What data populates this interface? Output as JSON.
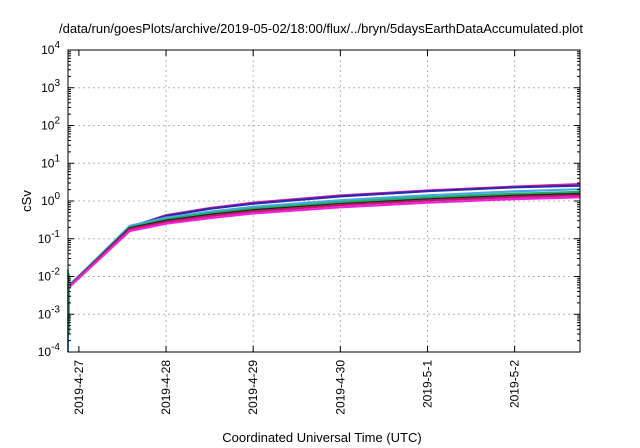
{
  "chart_data": {
    "type": "line",
    "title": "/data/run/goesPlots/archive/2019-05-02/18:00/flux/../bryn/5daysEarthDataAccumulated.plot",
    "xlabel": "Coordinated Universal Time (UTC)",
    "ylabel": "cSv",
    "yscale": "log",
    "ylim": [
      0.0001,
      10000
    ],
    "xlim": [
      "2019-04-26 21:00",
      "2019-05-02 18:00"
    ],
    "grid": true,
    "legend": "none",
    "x_ticks": [
      "2019-4-27",
      "2019-4-28",
      "2019-4-29",
      "2019-4-30",
      "2019-5-1",
      "2019-5-2"
    ],
    "y_ticks": [
      {
        "base": "10",
        "exp": "-4",
        "value": 0.0001
      },
      {
        "base": "10",
        "exp": "-3",
        "value": 0.001
      },
      {
        "base": "10",
        "exp": "-2",
        "value": 0.01
      },
      {
        "base": "10",
        "exp": "-1",
        "value": 0.1
      },
      {
        "base": "10",
        "exp": "0",
        "value": 1
      },
      {
        "base": "10",
        "exp": "1",
        "value": 10
      },
      {
        "base": "10",
        "exp": "2",
        "value": 100
      },
      {
        "base": "10",
        "exp": "3",
        "value": 1000
      },
      {
        "base": "10",
        "exp": "4",
        "value": 10000
      }
    ],
    "series": [
      {
        "color": "#e0189a",
        "x": [
          "2019-04-26 21:00",
          "2019-04-26 21:30",
          "2019-04-27 14:00",
          "2019-04-28 00:00",
          "2019-04-28 12:00",
          "2019-04-29 00:00",
          "2019-04-30 00:00",
          "2019-05-01 00:00",
          "2019-05-02 00:00",
          "2019-05-02 18:00"
        ],
        "values": [
          0.005,
          0.006,
          0.2,
          0.42,
          0.65,
          0.9,
          1.4,
          1.9,
          2.4,
          2.8
        ]
      },
      {
        "color": "#2a2ab0",
        "x": [
          "2019-04-26 21:00",
          "2019-04-26 21:30",
          "2019-04-27 14:00",
          "2019-04-28 00:00",
          "2019-04-28 12:00",
          "2019-04-29 00:00",
          "2019-04-30 00:00",
          "2019-05-01 00:00",
          "2019-05-02 00:00",
          "2019-05-02 18:00"
        ],
        "values": [
          0.005,
          0.006,
          0.21,
          0.4,
          0.62,
          0.85,
          1.32,
          1.82,
          2.3,
          2.55
        ]
      },
      {
        "color": "#4aa8e8",
        "x": [
          "2019-04-26 21:00",
          "2019-04-26 21:30",
          "2019-04-27 14:00",
          "2019-04-28 00:00",
          "2019-04-28 12:00",
          "2019-04-29 00:00",
          "2019-04-30 00:00",
          "2019-05-01 00:00",
          "2019-05-02 00:00",
          "2019-05-02 18:00"
        ],
        "values": [
          0.005,
          0.0058,
          0.22,
          0.36,
          0.52,
          0.7,
          1.05,
          1.42,
          1.8,
          2.05
        ]
      },
      {
        "color": "#20b060",
        "x": [
          "2019-04-26 21:00",
          "2019-04-26 21:30",
          "2019-04-27 14:00",
          "2019-04-28 00:00",
          "2019-04-28 12:00",
          "2019-04-29 00:00",
          "2019-04-30 00:00",
          "2019-05-01 00:00",
          "2019-05-02 00:00",
          "2019-05-02 18:00"
        ],
        "values": [
          0.005,
          0.0057,
          0.2,
          0.33,
          0.47,
          0.63,
          0.93,
          1.25,
          1.55,
          1.75
        ]
      },
      {
        "color": "#222222",
        "x": [
          "2019-04-26 21:00",
          "2019-04-26 21:30",
          "2019-04-27 14:00",
          "2019-04-28 00:00",
          "2019-04-28 12:00",
          "2019-04-29 00:00",
          "2019-04-30 00:00",
          "2019-05-01 00:00",
          "2019-05-02 00:00",
          "2019-05-02 18:00"
        ],
        "values": [
          0.005,
          0.0056,
          0.19,
          0.3,
          0.43,
          0.57,
          0.83,
          1.1,
          1.38,
          1.55
        ]
      },
      {
        "color": "#c0186a",
        "x": [
          "2019-04-26 21:00",
          "2019-04-26 21:30",
          "2019-04-27 14:00",
          "2019-04-28 00:00",
          "2019-04-28 12:00",
          "2019-04-29 00:00",
          "2019-04-30 00:00",
          "2019-05-01 00:00",
          "2019-05-02 00:00",
          "2019-05-02 18:00"
        ],
        "values": [
          0.005,
          0.0055,
          0.18,
          0.28,
          0.4,
          0.53,
          0.78,
          1.03,
          1.28,
          1.42
        ]
      },
      {
        "color": "#ee22dd",
        "x": [
          "2019-04-26 21:00",
          "2019-04-26 21:30",
          "2019-04-27 14:00",
          "2019-04-28 00:00",
          "2019-04-28 12:00",
          "2019-04-29 00:00",
          "2019-04-30 00:00",
          "2019-05-01 00:00",
          "2019-05-02 00:00",
          "2019-05-02 18:00"
        ],
        "values": [
          0.005,
          0.0054,
          0.16,
          0.25,
          0.35,
          0.47,
          0.68,
          0.9,
          1.12,
          1.25
        ]
      }
    ],
    "early_spikes": [
      {
        "color": "#4aa8e8",
        "x": "2019-04-26 21:00",
        "values": [
          0.0001,
          0.015
        ]
      },
      {
        "color": "#20b060",
        "x": "2019-04-26 21:15",
        "values": [
          0.0003,
          0.012
        ]
      }
    ]
  }
}
